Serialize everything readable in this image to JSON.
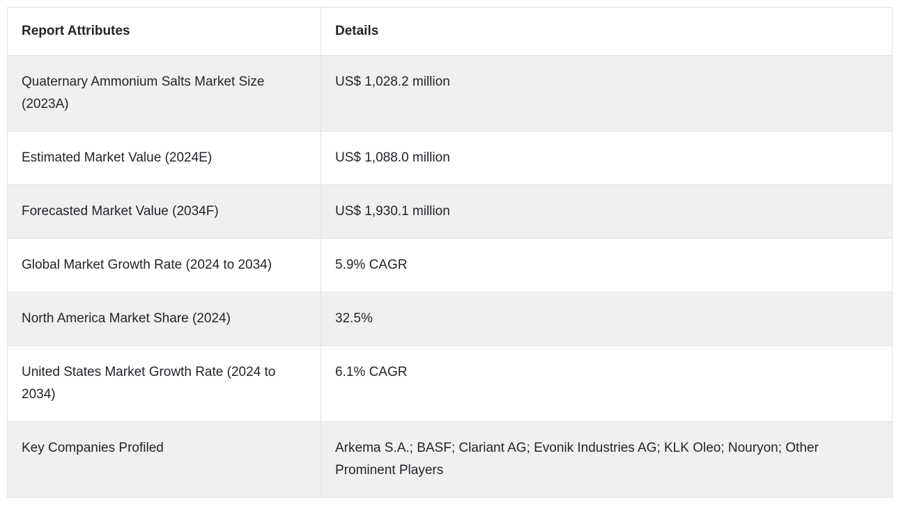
{
  "table": {
    "headers": {
      "attribute": "Report Attributes",
      "details": "Details"
    },
    "rows": [
      {
        "attribute": "Quaternary Ammonium Salts Market Size (2023A)",
        "details": "US$ 1,028.2 million"
      },
      {
        "attribute": "Estimated Market Value (2024E)",
        "details": "US$ 1,088.0 million"
      },
      {
        "attribute": "Forecasted Market Value (2034F)",
        "details": "US$ 1,930.1 million"
      },
      {
        "attribute": "Global Market Growth Rate (2024 to 2034)",
        "details": "5.9% CAGR"
      },
      {
        "attribute": "North America Market Share (2024)",
        "details": "32.5%"
      },
      {
        "attribute": "United States Market Growth Rate (2024 to 2034)",
        "details": "6.1% CAGR"
      },
      {
        "attribute": "Key Companies Profiled",
        "details": "Arkema S.A.; BASF; Clariant AG; Evonik Industries AG; KLK Oleo; Nouryon; Other Prominent Players"
      }
    ],
    "colors": {
      "stripe": "#f0f0f1",
      "border": "#dee2e6",
      "text": "#212529"
    }
  }
}
